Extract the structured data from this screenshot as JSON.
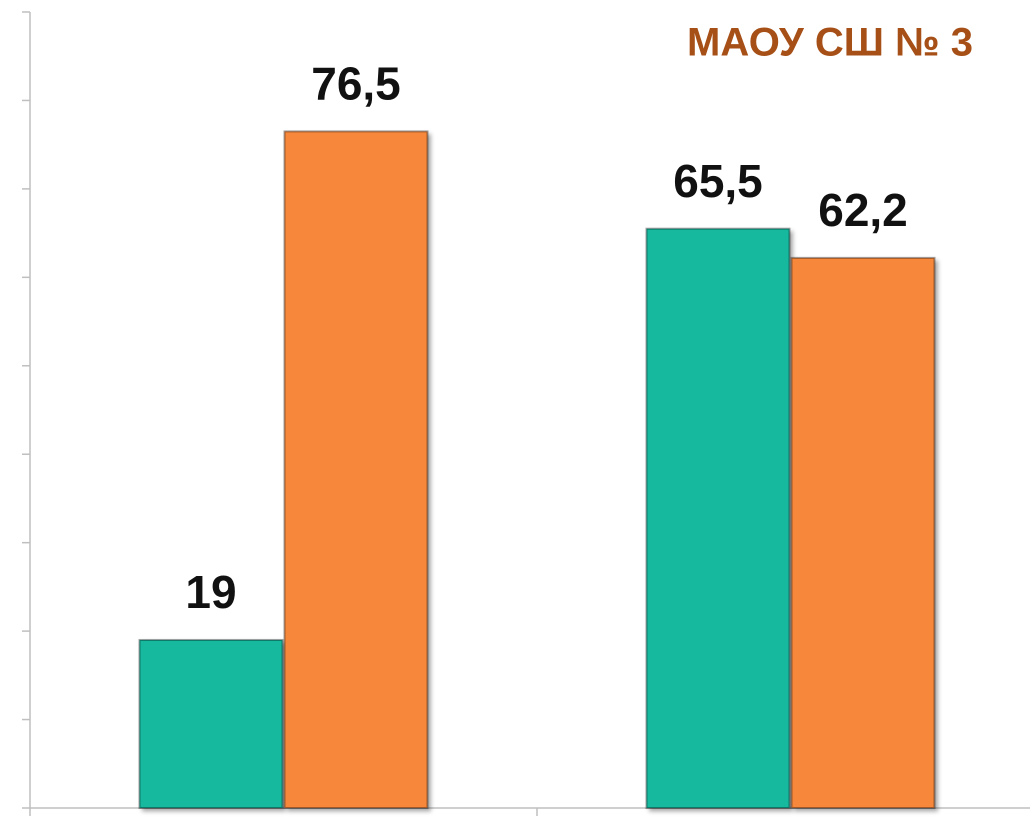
{
  "chart_data": {
    "type": "bar",
    "title": "МАОУ СШ № 3",
    "categories": [
      null,
      null
    ],
    "series": [
      {
        "color": "#14b89e",
        "values": [
          19,
          65.5
        ],
        "value_labels": [
          "19",
          "65,5"
        ]
      },
      {
        "color": "#f7883a",
        "values": [
          76.5,
          62.2
        ],
        "value_labels": [
          "76,5",
          "62,2"
        ]
      }
    ],
    "ylim": [
      0,
      90
    ],
    "yticks": [
      0,
      10,
      20,
      30,
      40,
      50,
      60,
      70,
      80,
      90
    ],
    "grid": false
  }
}
